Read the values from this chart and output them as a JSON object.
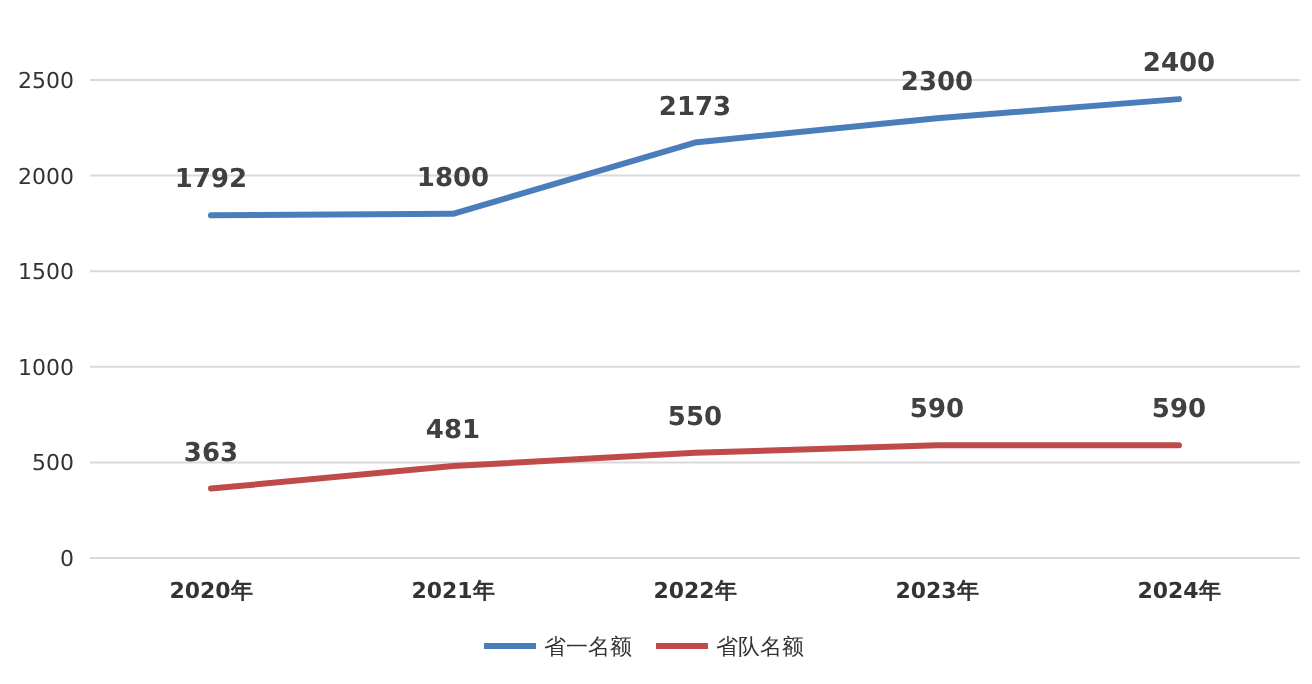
{
  "chart_data": {
    "type": "line",
    "categories": [
      "2020年",
      "2021年",
      "2022年",
      "2023年",
      "2024年"
    ],
    "series": [
      {
        "name": "省一名额",
        "color": "#4a7ebb",
        "values": [
          1792,
          1800,
          2173,
          2300,
          2400
        ]
      },
      {
        "name": "省队名额",
        "color": "#be4b48",
        "values": [
          363,
          481,
          550,
          590,
          590
        ]
      }
    ],
    "ylim": [
      0,
      2500
    ],
    "yticks": [
      0,
      500,
      1000,
      1500,
      2000,
      2500
    ],
    "grid": "y",
    "legend": "bottom",
    "data_labels": true,
    "marker": "none",
    "line_style": "solid"
  }
}
